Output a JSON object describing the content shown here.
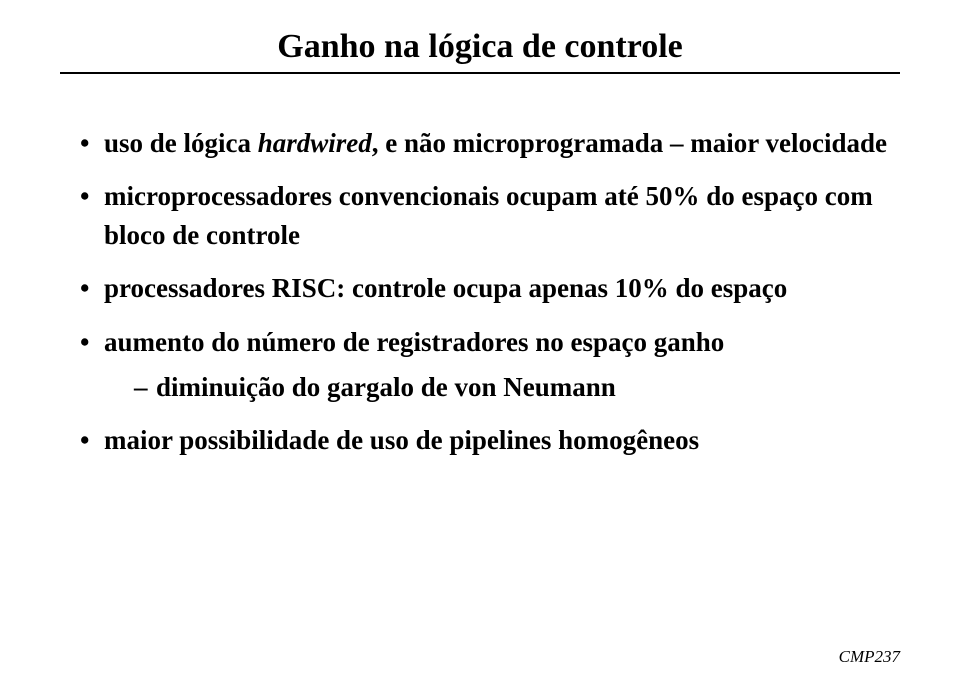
{
  "title": "Ganho na lógica de controle",
  "bullets": {
    "b1": "uso de lógica ",
    "b1_italic": "hardwired",
    "b1_tail": ", e não microprogramada – maior velocidade",
    "b2": "microprocessadores convencionais ocupam até 50% do espaço com bloco de controle",
    "b3": "processadores RISC: controle ocupa apenas 10% do espaço",
    "b4": "aumento do número de registradores no espaço ganho",
    "b4_sub1": "diminuição do gargalo de von Neumann",
    "b5": "maior possibilidade de uso de pipelines homogêneos"
  },
  "footer": "CMP237"
}
